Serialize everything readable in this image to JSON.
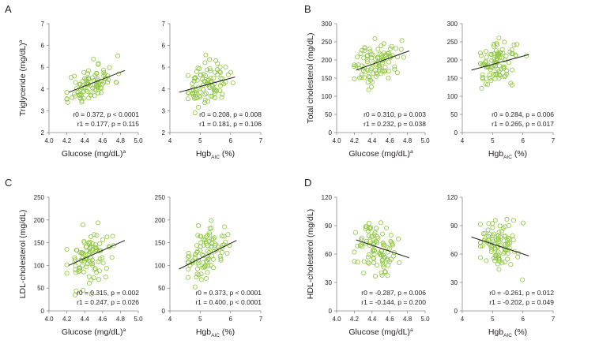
{
  "figure": {
    "point_color": "#8dc63f",
    "line_color": "#231f20"
  },
  "chart_data": [
    {
      "panel": "A",
      "position": "left",
      "type": "scatter",
      "ylabel": "Triglyceride (mg/dL)",
      "ylabel_sup": "a",
      "xlabel": "Glucose (mg/dL)",
      "xlabel_sup": "a",
      "xlim": [
        4.0,
        5.0
      ],
      "ylim": [
        2,
        7
      ],
      "xticks": [
        "4.0",
        "4.2",
        "4.4",
        "4.6",
        "4.8",
        "5.0"
      ],
      "yticks": [
        "2",
        "3",
        "4",
        "5",
        "6",
        "7"
      ],
      "fit_line": [
        [
          4.22,
          3.85
        ],
        [
          4.85,
          4.85
        ]
      ],
      "stats": [
        "r0 = 0.372, p < 0.0001",
        "r1 = 0.177, p = 0.115"
      ],
      "cluster": {
        "x_mean": 4.47,
        "x_sd": 0.13,
        "slope": 1.59,
        "anchor": [
          4.22,
          3.85
        ],
        "resid_sd": 0.4,
        "n": 95,
        "seed": 11
      }
    },
    {
      "panel": "A",
      "position": "right",
      "type": "scatter",
      "ylabel": "",
      "xlabel": "Hgb",
      "xlabel_sub": "AIC",
      "xlabel_unit": " (%)",
      "xlim": [
        4,
        7
      ],
      "ylim": [
        2,
        7
      ],
      "xticks": [
        "4",
        "5",
        "6",
        "7"
      ],
      "yticks": [
        "2",
        "3",
        "4",
        "5",
        "6",
        "7"
      ],
      "fit_line": [
        [
          4.3,
          3.85
        ],
        [
          6.15,
          4.55
        ]
      ],
      "stats": [
        "r0 = 0.208, p = 0.008",
        "r1 = 0.181, p = 0.106"
      ],
      "cluster": {
        "x_mean": 5.2,
        "x_sd": 0.35,
        "slope": 0.378,
        "anchor": [
          4.3,
          3.85
        ],
        "resid_sd": 0.45,
        "n": 95,
        "seed": 23
      }
    },
    {
      "panel": "B",
      "position": "left",
      "type": "scatter",
      "ylabel": "Total cholesterol (mg/dL)",
      "xlabel": "Glucose (mg/dL)",
      "xlabel_sup": "a",
      "xlim": [
        4.0,
        5.0
      ],
      "ylim": [
        0,
        300
      ],
      "xticks": [
        "4.0",
        "4.2",
        "4.4",
        "4.6",
        "4.8",
        "5.0"
      ],
      "yticks": [
        "0",
        "50",
        "100",
        "150",
        "200",
        "250",
        "300"
      ],
      "fit_line": [
        [
          4.22,
          172
        ],
        [
          4.82,
          225
        ]
      ],
      "stats": [
        "r0 = 0.310, p = 0.003",
        "r1 = 0.232, p = 0.038"
      ],
      "cluster": {
        "x_mean": 4.46,
        "x_sd": 0.13,
        "slope": 88.3,
        "anchor": [
          4.22,
          172
        ],
        "resid_sd": 28,
        "n": 95,
        "seed": 37
      }
    },
    {
      "panel": "B",
      "position": "right",
      "type": "scatter",
      "ylabel": "",
      "xlabel": "Hgb",
      "xlabel_sub": "AIC",
      "xlabel_unit": " (%)",
      "xlim": [
        4,
        7
      ],
      "ylim": [
        0,
        300
      ],
      "xticks": [
        "4",
        "5",
        "6",
        "7"
      ],
      "yticks": [
        "0",
        "50",
        "100",
        "150",
        "200",
        "250",
        "300"
      ],
      "fit_line": [
        [
          4.3,
          172
        ],
        [
          6.2,
          215
        ]
      ],
      "stats": [
        "r0 = 0.284, p = 0.006",
        "r1 = 0.265, p = 0.017"
      ],
      "cluster": {
        "x_mean": 5.2,
        "x_sd": 0.35,
        "slope": 22.6,
        "anchor": [
          4.3,
          172
        ],
        "resid_sd": 28,
        "n": 95,
        "seed": 41
      }
    },
    {
      "panel": "C",
      "position": "left",
      "type": "scatter",
      "ylabel": "LDL-cholesterol (mg/dL)",
      "xlabel": "Glucose (mg/dL)",
      "xlabel_sup": "a",
      "xlim": [
        4.0,
        5.0
      ],
      "ylim": [
        0,
        250
      ],
      "xticks": [
        "4.0",
        "4.2",
        "4.4",
        "4.6",
        "4.8",
        "5.0"
      ],
      "yticks": [
        "0",
        "50",
        "100",
        "150",
        "200",
        "250"
      ],
      "fit_line": [
        [
          4.22,
          100
        ],
        [
          4.85,
          155
        ]
      ],
      "stats": [
        "r0 = 0.315, p = 0.002",
        "r1 = 0.247, p = 0.026"
      ],
      "cluster": {
        "x_mean": 4.46,
        "x_sd": 0.13,
        "slope": 87.3,
        "anchor": [
          4.22,
          100
        ],
        "resid_sd": 30,
        "n": 95,
        "seed": 53
      }
    },
    {
      "panel": "C",
      "position": "right",
      "type": "scatter",
      "ylabel": "",
      "xlabel": "Hgb",
      "xlabel_sub": "AIC",
      "xlabel_unit": " (%)",
      "xlim": [
        4,
        7
      ],
      "ylim": [
        0,
        250
      ],
      "xticks": [
        "4",
        "5",
        "6",
        "7"
      ],
      "yticks": [
        "0",
        "50",
        "100",
        "150",
        "200",
        "250"
      ],
      "fit_line": [
        [
          4.3,
          92
        ],
        [
          6.2,
          155
        ]
      ],
      "stats": [
        "r0 = 0.373, p < 0.0001",
        "r1 = 0.400, p < 0.0001"
      ],
      "cluster": {
        "x_mean": 5.2,
        "x_sd": 0.35,
        "slope": 33.2,
        "anchor": [
          4.3,
          92
        ],
        "resid_sd": 28,
        "n": 95,
        "seed": 67
      }
    },
    {
      "panel": "D",
      "position": "left",
      "type": "scatter",
      "ylabel": "HDL-cholesterol (mg/dL)",
      "xlabel": "Glucose (mg/dL)",
      "xlabel_sup": "a",
      "xlim": [
        4.0,
        5.0
      ],
      "ylim": [
        0,
        120
      ],
      "xticks": [
        "4.0",
        "4.2",
        "4.4",
        "4.6",
        "4.8",
        "5.0"
      ],
      "yticks": [
        "0",
        "30",
        "60",
        "90",
        "120"
      ],
      "fit_line": [
        [
          4.22,
          75
        ],
        [
          4.82,
          56
        ]
      ],
      "stats": [
        "r0 = -0.287, p = 0.006",
        "r1 = -0.144, p = 0.200"
      ],
      "cluster": {
        "x_mean": 4.45,
        "x_sd": 0.12,
        "slope": -31.7,
        "anchor": [
          4.22,
          75
        ],
        "resid_sd": 13,
        "n": 95,
        "seed": 79
      }
    },
    {
      "panel": "D",
      "position": "right",
      "type": "scatter",
      "ylabel": "",
      "xlabel": "Hgb",
      "xlabel_sub": "AIC",
      "xlabel_unit": " (%)",
      "xlim": [
        4,
        7
      ],
      "ylim": [
        0,
        120
      ],
      "xticks": [
        "4",
        "5",
        "6",
        "7"
      ],
      "yticks": [
        "0",
        "30",
        "60",
        "90",
        "120"
      ],
      "fit_line": [
        [
          4.3,
          78
        ],
        [
          6.2,
          58
        ]
      ],
      "stats": [
        "r0 = -0.261, p = 0.012",
        "r1 = -0.202, p = 0.049"
      ],
      "cluster": {
        "x_mean": 5.2,
        "x_sd": 0.33,
        "slope": -10.5,
        "anchor": [
          4.3,
          78
        ],
        "resid_sd": 13,
        "n": 95,
        "seed": 83
      }
    }
  ]
}
